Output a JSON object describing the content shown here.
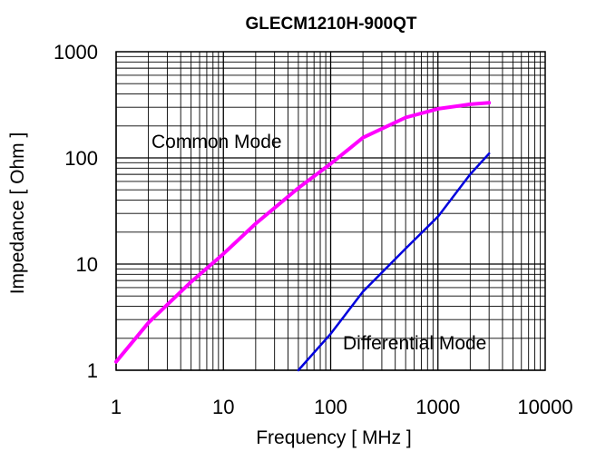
{
  "chart_data": {
    "type": "line",
    "title": "GLECM1210H-900QT",
    "xlabel": "Frequency [ MHz ]",
    "ylabel": "Impedance [ Ohm ]",
    "xscale": "log",
    "yscale": "log",
    "xlim": [
      1,
      10000
    ],
    "ylim": [
      1,
      1000
    ],
    "x_tick_labels": [
      "1",
      "10",
      "100",
      "1000",
      "10000"
    ],
    "y_tick_labels": [
      "1",
      "10",
      "100",
      "1000"
    ],
    "grid": true,
    "colors": {
      "common": "#ff00ff",
      "differential": "#0000dd"
    },
    "series": [
      {
        "name": "Common Mode",
        "x": [
          1,
          2,
          5,
          10,
          20,
          50,
          100,
          200,
          500,
          1000,
          2000,
          3000
        ],
        "y": [
          1.2,
          2.8,
          6.8,
          12.5,
          24,
          52,
          88,
          155,
          240,
          290,
          320,
          330
        ]
      },
      {
        "name": "Differential Mode",
        "x": [
          50,
          100,
          200,
          500,
          1000,
          2000,
          3000
        ],
        "y": [
          1,
          2.2,
          5.5,
          14,
          28,
          70,
          110
        ]
      }
    ]
  }
}
